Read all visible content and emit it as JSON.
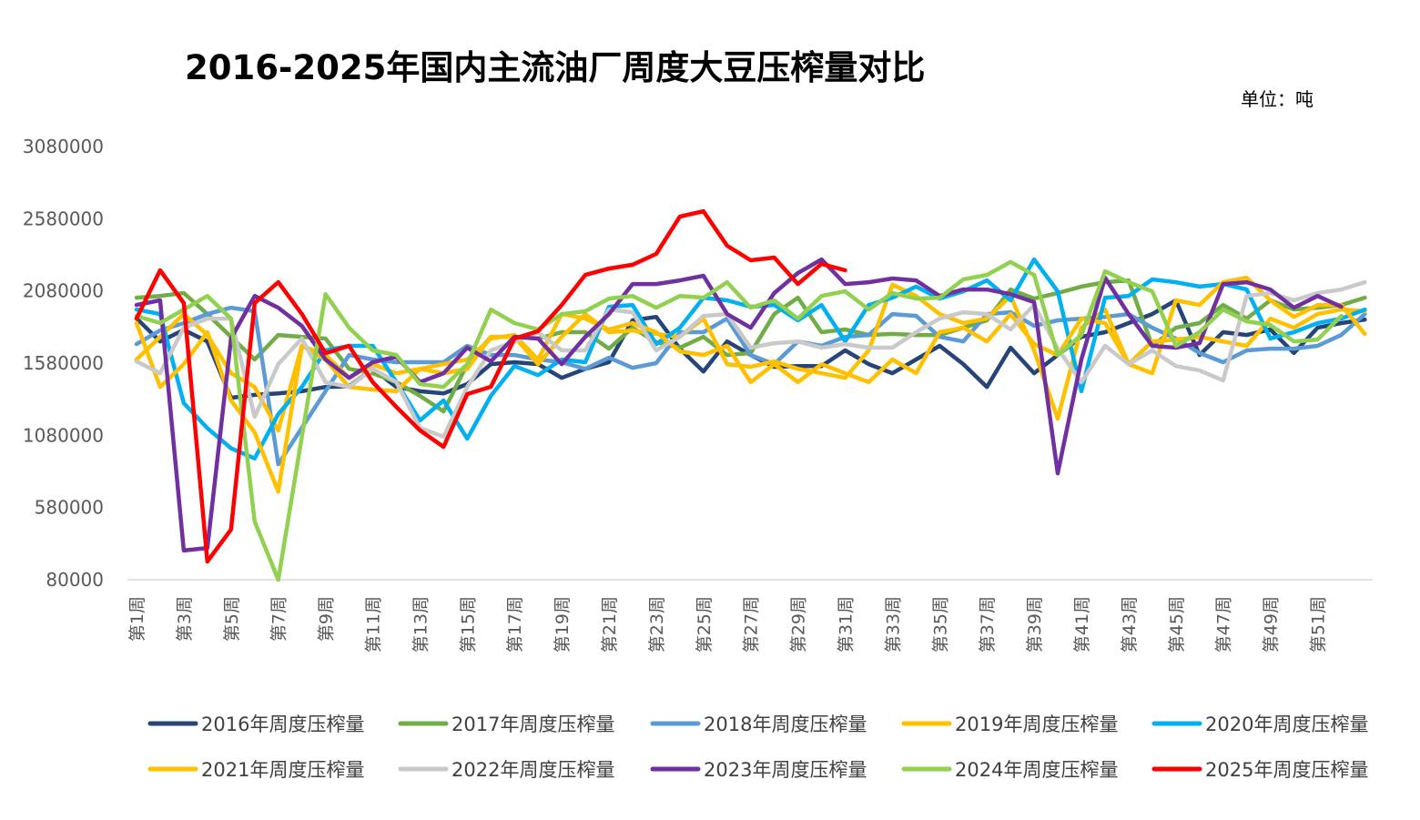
{
  "chart_data": {
    "type": "line",
    "title": "2016-2025年国内主流油厂周度大豆压榨量对比",
    "unit_label": "单位：吨",
    "xlabel": "",
    "ylabel": "",
    "ylim": [
      80000,
      3080000
    ],
    "y_ticks": [
      80000,
      580000,
      1080000,
      1580000,
      2080000,
      2580000,
      3080000
    ],
    "x_tick_labels": [
      "第1周",
      "第3周",
      "第5周",
      "第7周",
      "第9周",
      "第11周",
      "第13周",
      "第15周",
      "第17周",
      "第19周",
      "第21周",
      "第23周",
      "第25周",
      "第27周",
      "第29周",
      "第31周",
      "第33周",
      "第35周",
      "第37周",
      "第39周",
      "第41周",
      "第43周",
      "第45周",
      "第47周",
      "第49周",
      "第51周"
    ],
    "x_week_range": [
      1,
      53
    ],
    "grid": false,
    "legend_position": "bottom",
    "series": [
      {
        "name": "2016年周度压榨量",
        "color": "#264478",
        "values": [
          1890000,
          1730000,
          1810000,
          1730000,
          1340000,
          1360000,
          1370000,
          1385000,
          1415000,
          1420000,
          1540000,
          1415000,
          1385000,
          1370000,
          1435000,
          1573000,
          1586000,
          1573000,
          1478000,
          1540000,
          1586000,
          1876000,
          1900000,
          1680000,
          1522000,
          1730000,
          1636000,
          1554000,
          1560000,
          1560000,
          1668000,
          1573000,
          1510000,
          1605000,
          1700000,
          1573000,
          1415000,
          1687000,
          1510000,
          1636000,
          1762000,
          1794000,
          1857000,
          1920000,
          2015000,
          1636000,
          1794000,
          1775000,
          1813000,
          1650000,
          1825000,
          1857000,
          1882000
        ]
      },
      {
        "name": "2017年周度压榨量",
        "color": "#70AD47",
        "values": [
          2033000,
          2045000,
          2065000,
          1920000,
          1762000,
          1605000,
          1775000,
          1762000,
          1750000,
          1540000,
          1510000,
          1448000,
          1353000,
          1246000,
          1573000,
          1762000,
          1762000,
          1750000,
          1794000,
          1794000,
          1680000,
          1825000,
          1725000,
          1687000,
          1762000,
          1636000,
          1650000,
          1920000,
          2033000,
          1794000,
          1813000,
          1775000,
          1782000,
          1775000,
          1775000,
          1825000,
          1876000,
          2090000,
          2027000,
          2065000,
          2110000,
          2140000,
          2153000,
          1700000,
          1825000,
          1857000,
          1983000,
          1888000,
          2015000,
          1952000,
          1964000,
          1983000,
          2033000
        ]
      },
      {
        "name": "2018年周度压榨量",
        "color": "#5B9BD5",
        "values": [
          1712000,
          1806000,
          1857000,
          1920000,
          1964000,
          1939000,
          880000,
          1132000,
          1385000,
          1636000,
          1605000,
          1586000,
          1586000,
          1586000,
          1700000,
          1636000,
          1636000,
          1605000,
          1586000,
          1540000,
          1618000,
          1547000,
          1580000,
          1794000,
          1794000,
          1888000,
          1636000,
          1573000,
          1730000,
          1700000,
          1762000,
          1775000,
          1920000,
          1907000,
          1762000,
          1730000,
          1920000,
          1932000,
          1838000,
          1876000,
          1888000,
          1900000,
          1920000,
          1825000,
          1750000,
          1650000,
          1586000,
          1668000,
          1680000,
          1680000,
          1700000,
          1775000,
          1920000
        ]
      },
      {
        "name": "2019年周度压榨量",
        "color": "#FFC000",
        "values": [
          1605000,
          1762000,
          1920000,
          1775000,
          1510000,
          1415000,
          1113000,
          1700000,
          1636000,
          1478000,
          1573000,
          1510000,
          1540000,
          1510000,
          1540000,
          1762000,
          1762000,
          1573000,
          1762000,
          1920000,
          1794000,
          1806000,
          1782000,
          1762000,
          1888000,
          1573000,
          1554000,
          1592000,
          1540000,
          1510000,
          1478000,
          1668000,
          2124000,
          2045000,
          1920000,
          1857000,
          1888000,
          2045000,
          1668000,
          1195000,
          1825000,
          1952000,
          1573000,
          1730000,
          1743000,
          1762000,
          1730000,
          1700000,
          1888000,
          1825000,
          1920000,
          1952000,
          1939000
        ]
      },
      {
        "name": "2020年周度压榨量",
        "color": "#00B0F0",
        "values": [
          1951000,
          1920000,
          1303000,
          1130000,
          990000,
          920000,
          1227000,
          1415000,
          1668000,
          1700000,
          1700000,
          1448000,
          1183000,
          1322000,
          1057000,
          1353000,
          1560000,
          1497000,
          1605000,
          1586000,
          1970000,
          1983000,
          1712000,
          1825000,
          2033000,
          2015000,
          1970000,
          1983000,
          1876000,
          1983000,
          1730000,
          1983000,
          2033000,
          2110000,
          2027000,
          2077000,
          2153000,
          2015000,
          2298000,
          2077000,
          1385000,
          2033000,
          2045000,
          2160000,
          2140000,
          2110000,
          2128000,
          2090000,
          1750000,
          1794000,
          1857000,
          1888000,
          1951000
        ]
      },
      {
        "name": "2021年周度压榨量",
        "color": "#FFC000",
        "values": [
          1857000,
          1415000,
          1573000,
          1794000,
          1322000,
          1100000,
          690000,
          1700000,
          1605000,
          1415000,
          1397000,
          1385000,
          1540000,
          1573000,
          1605000,
          1750000,
          1775000,
          1605000,
          1920000,
          1888000,
          1813000,
          1857000,
          1794000,
          1661000,
          1636000,
          1700000,
          1448000,
          1573000,
          1448000,
          1573000,
          1510000,
          1448000,
          1605000,
          1510000,
          1794000,
          1825000,
          1730000,
          1920000,
          1712000,
          1636000,
          1888000,
          1857000,
          1573000,
          1510000,
          2015000,
          1983000,
          2140000,
          2172000,
          2015000,
          1900000,
          1983000,
          1983000,
          1782000
        ]
      },
      {
        "name": "2022年周度压榨量",
        "color": "#C9C9C9",
        "values": [
          1592000,
          1510000,
          1825000,
          1888000,
          1888000,
          1208000,
          1573000,
          1750000,
          1448000,
          1415000,
          1540000,
          1448000,
          1132000,
          1070000,
          1415000,
          1668000,
          1730000,
          1794000,
          1668000,
          1668000,
          1951000,
          1932000,
          1668000,
          1762000,
          1907000,
          1920000,
          1687000,
          1718000,
          1730000,
          1687000,
          1712000,
          1687000,
          1687000,
          1794000,
          1888000,
          1932000,
          1920000,
          1813000,
          1983000,
          1680000,
          1448000,
          1700000,
          1573000,
          1668000,
          1560000,
          1529000,
          1460000,
          2045000,
          2065000,
          2015000,
          2065000,
          2090000,
          2140000
        ]
      },
      {
        "name": "2023年周度压榨量",
        "color": "#7030A0",
        "values": [
          1983000,
          2015000,
          282000,
          300000,
          1750000,
          2045000,
          1964000,
          1838000,
          1605000,
          1478000,
          1586000,
          1624000,
          1448000,
          1510000,
          1687000,
          1592000,
          1762000,
          1750000,
          1573000,
          1762000,
          1920000,
          2128000,
          2128000,
          2153000,
          2185000,
          1920000,
          1825000,
          2065000,
          2204000,
          2298000,
          2128000,
          2140000,
          2166000,
          2153000,
          2045000,
          2090000,
          2090000,
          2058000,
          2002000,
          817000,
          1605000,
          2172000,
          1920000,
          1700000,
          1687000,
          1718000,
          2128000,
          2140000,
          2090000,
          1964000,
          2045000,
          1970000
        ]
      },
      {
        "name": "2024年周度压榨量",
        "color": "#92D050",
        "values": [
          1907000,
          1857000,
          1951000,
          2045000,
          1888000,
          483000,
          80000,
          1070000,
          2058000,
          1825000,
          1668000,
          1636000,
          1435000,
          1415000,
          1573000,
          1951000,
          1857000,
          1813000,
          1920000,
          1939000,
          2027000,
          2045000,
          1964000,
          2045000,
          2033000,
          2140000,
          1964000,
          2015000,
          1888000,
          2045000,
          2077000,
          1951000,
          2065000,
          2027000,
          2033000,
          2160000,
          2191000,
          2280000,
          2191000,
          1636000,
          1775000,
          2216000,
          2140000,
          2077000,
          1700000,
          1794000,
          1951000,
          1869000,
          1844000,
          1730000,
          1743000,
          1907000
        ]
      },
      {
        "name": "2025年周度压榨量",
        "color": "#FF0000",
        "values": [
          1889000,
          2223000,
          1996000,
          206000,
          427000,
          1996000,
          2141000,
          1920000,
          1649000,
          1700000,
          1448000,
          1277000,
          1114000,
          1000000,
          1366000,
          1416000,
          1750000,
          1801000,
          1983000,
          2191000,
          2235000,
          2261000,
          2336000,
          2595000,
          2632000,
          2393000,
          2292000,
          2311000,
          2128000,
          2267000,
          2223000
        ]
      }
    ]
  }
}
